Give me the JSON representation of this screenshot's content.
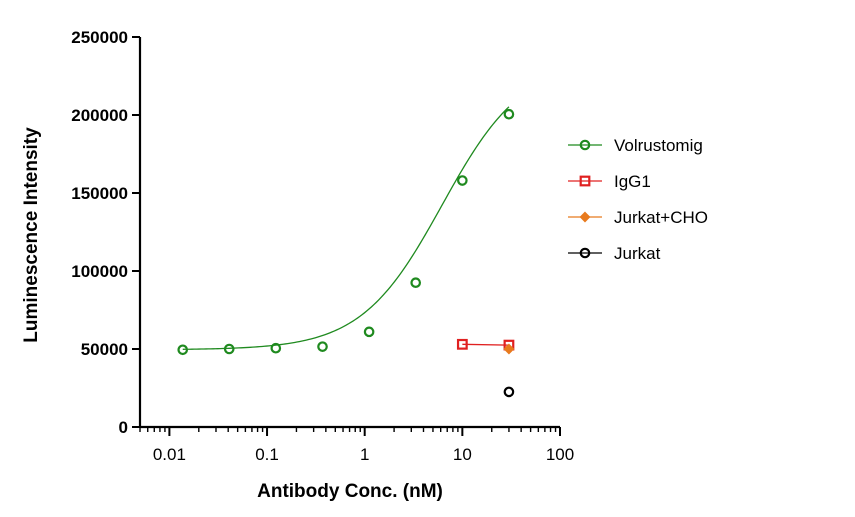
{
  "chart_data": {
    "type": "scatter",
    "xlabel": "Antibody Conc. (nM)",
    "ylabel": "Luminescence Intensity",
    "xscale": "log",
    "xlim": [
      0.005,
      100
    ],
    "ylim": [
      0,
      250000
    ],
    "x_ticks": [
      0.01,
      0.1,
      1,
      10,
      100
    ],
    "x_tick_labels": [
      "0.01",
      "0.1",
      "1",
      "10",
      "100"
    ],
    "y_ticks": [
      0,
      50000,
      100000,
      150000,
      200000,
      250000
    ],
    "y_tick_labels": [
      "0",
      "50000",
      "100000",
      "150000",
      "200000",
      "250000"
    ],
    "legend_position": "right",
    "series": [
      {
        "name": "Volrustomig",
        "color": "#1f8a1f",
        "marker": "circle",
        "fit": "sigmoid",
        "x": [
          0.0137,
          0.041,
          0.123,
          0.37,
          1.11,
          3.33,
          10,
          30
        ],
        "y": [
          49500,
          50000,
          50500,
          51500,
          61000,
          92500,
          158000,
          200500
        ]
      },
      {
        "name": "IgG1",
        "color": "#e02020",
        "marker": "square",
        "fit": "line",
        "x": [
          10,
          30
        ],
        "y": [
          53000,
          52500
        ]
      },
      {
        "name": "Jurkat+CHO",
        "color": "#e87a1e",
        "marker": "diamond",
        "fit": "none",
        "x": [
          30
        ],
        "y": [
          50000
        ]
      },
      {
        "name": "Jurkat",
        "color": "#000000",
        "marker": "circle",
        "fit": "none",
        "x": [
          30
        ],
        "y": [
          22500
        ]
      }
    ]
  }
}
